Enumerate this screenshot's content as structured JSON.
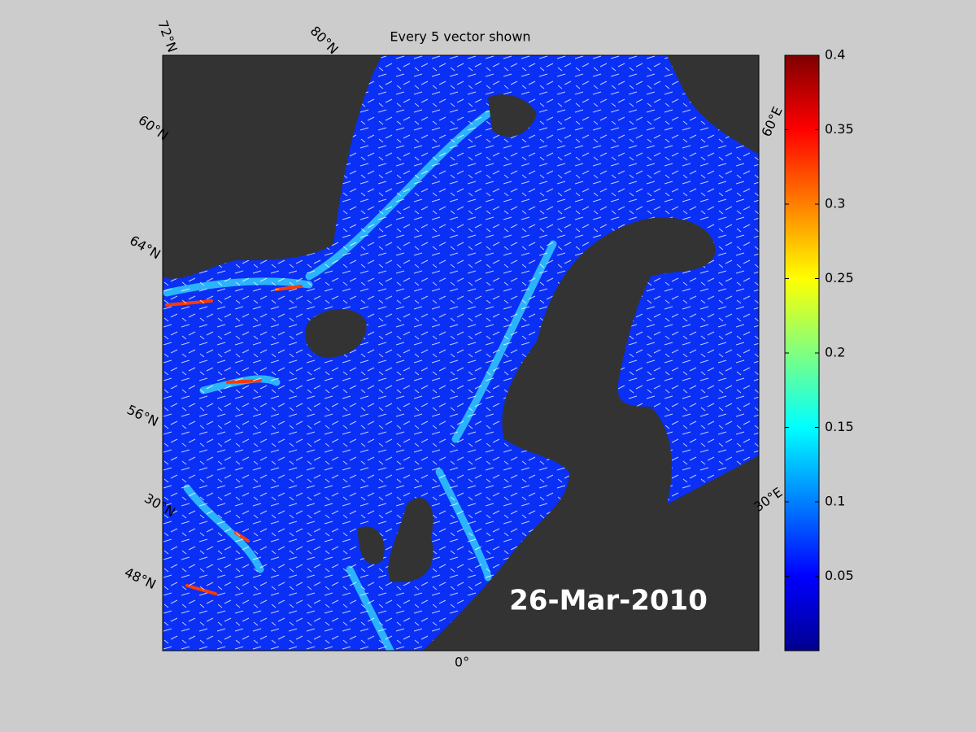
{
  "title": "Every 5 vector shown",
  "date_label": "26-Mar-2010",
  "map_labels": [
    "72°N",
    "80°N",
    "60°N",
    "64°N",
    "56°N",
    "30°N",
    "48°N",
    "60°E",
    "30°E",
    "0°"
  ],
  "colorbar": {
    "colormap": "jet",
    "ylim": [
      0,
      0.4
    ],
    "yticks": [
      0.05,
      0.1,
      0.15,
      0.2,
      0.25,
      0.3,
      0.35,
      0.4
    ]
  }
}
